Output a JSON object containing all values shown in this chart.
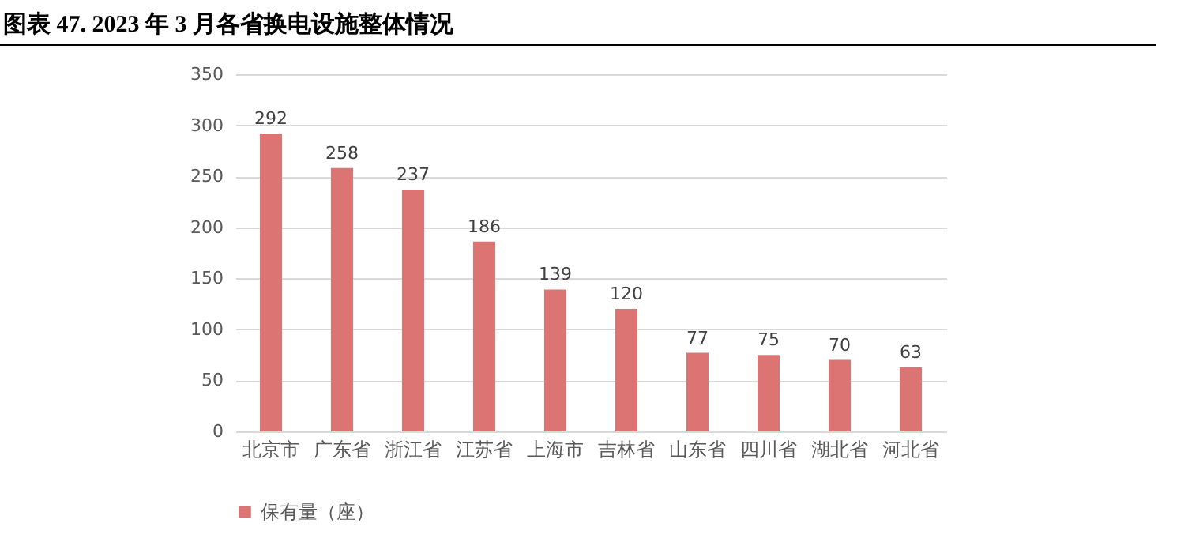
{
  "chart_data": {
    "type": "bar",
    "title": "图表 47. 2023 年 3 月各省换电设施整体情况",
    "categories": [
      "北京市",
      "广东省",
      "浙江省",
      "江苏省",
      "上海市",
      "吉林省",
      "山东省",
      "四川省",
      "湖北省",
      "河北省"
    ],
    "series": [
      {
        "name": "保有量（座）",
        "color": "#dc7474",
        "values": [
          292,
          258,
          237,
          186,
          139,
          120,
          77,
          75,
          70,
          63
        ]
      }
    ],
    "ylim": [
      0,
      350
    ],
    "yticks": [
      0,
      50,
      100,
      150,
      200,
      250,
      300,
      350
    ],
    "grid": "y",
    "legend": "bottom",
    "data_labels": true
  }
}
